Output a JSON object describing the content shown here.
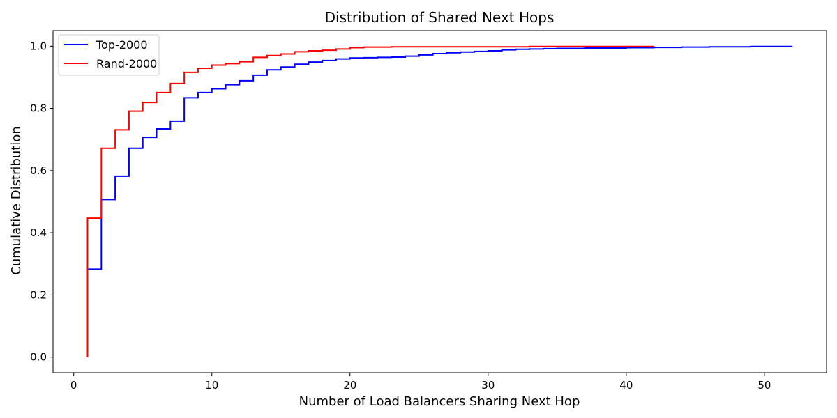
{
  "chart_data": {
    "type": "line",
    "step": true,
    "title": "Distribution of Shared Next Hops",
    "xlabel": "Number of Load Balancers Sharing Next Hop",
    "ylabel": "Cumulative Distribution",
    "xlim": [
      -1.5,
      54.5
    ],
    "ylim": [
      -0.05,
      1.05
    ],
    "xticks": [
      0,
      10,
      20,
      30,
      40,
      50
    ],
    "yticks": [
      0.0,
      0.2,
      0.4,
      0.6,
      0.8,
      1.0
    ],
    "xtick_labels": [
      "0",
      "10",
      "20",
      "30",
      "40",
      "50"
    ],
    "ytick_labels": [
      "0.0",
      "0.2",
      "0.4",
      "0.6",
      "0.8",
      "1.0"
    ],
    "legend_position": "top-left",
    "grid": false,
    "series": [
      {
        "name": "Top-2000",
        "color": "#0000ff",
        "x": [
          1,
          2,
          3,
          4,
          5,
          6,
          7,
          8,
          9,
          10,
          11,
          12,
          13,
          14,
          15,
          16,
          17,
          18,
          19,
          20,
          21,
          22,
          23,
          24,
          25,
          26,
          27,
          28,
          29,
          30,
          31,
          32,
          33,
          34,
          35,
          36,
          37,
          38,
          39,
          40,
          41,
          42,
          43,
          44,
          45,
          46,
          47,
          48,
          49,
          50,
          51,
          52
        ],
        "y": [
          0.283,
          0.507,
          0.582,
          0.672,
          0.707,
          0.734,
          0.759,
          0.834,
          0.851,
          0.863,
          0.876,
          0.889,
          0.907,
          0.924,
          0.933,
          0.942,
          0.949,
          0.954,
          0.959,
          0.962,
          0.963,
          0.964,
          0.965,
          0.968,
          0.972,
          0.976,
          0.979,
          0.981,
          0.983,
          0.985,
          0.988,
          0.99,
          0.991,
          0.992,
          0.993,
          0.993,
          0.994,
          0.994,
          0.994,
          0.995,
          0.995,
          0.996,
          0.996,
          0.997,
          0.997,
          0.998,
          0.998,
          0.998,
          0.999,
          0.999,
          0.999,
          1.0
        ]
      },
      {
        "name": "Rand-2000",
        "color": "#ff0000",
        "x": [
          1,
          2,
          3,
          4,
          5,
          6,
          7,
          8,
          9,
          10,
          11,
          12,
          13,
          14,
          15,
          16,
          17,
          18,
          19,
          20,
          21,
          22,
          23,
          24,
          25,
          26,
          27,
          28,
          29,
          30,
          31,
          32,
          33,
          34,
          35,
          36,
          37,
          38,
          39,
          40,
          41,
          42
        ],
        "y": [
          0.447,
          0.672,
          0.731,
          0.791,
          0.819,
          0.851,
          0.88,
          0.916,
          0.929,
          0.939,
          0.944,
          0.95,
          0.964,
          0.97,
          0.975,
          0.982,
          0.985,
          0.987,
          0.991,
          0.995,
          0.997,
          0.997,
          0.998,
          0.998,
          0.998,
          0.998,
          0.998,
          0.998,
          0.998,
          0.998,
          0.998,
          0.998,
          0.999,
          0.999,
          0.999,
          0.999,
          0.999,
          0.999,
          0.999,
          0.999,
          0.999,
          1.0
        ]
      }
    ]
  }
}
